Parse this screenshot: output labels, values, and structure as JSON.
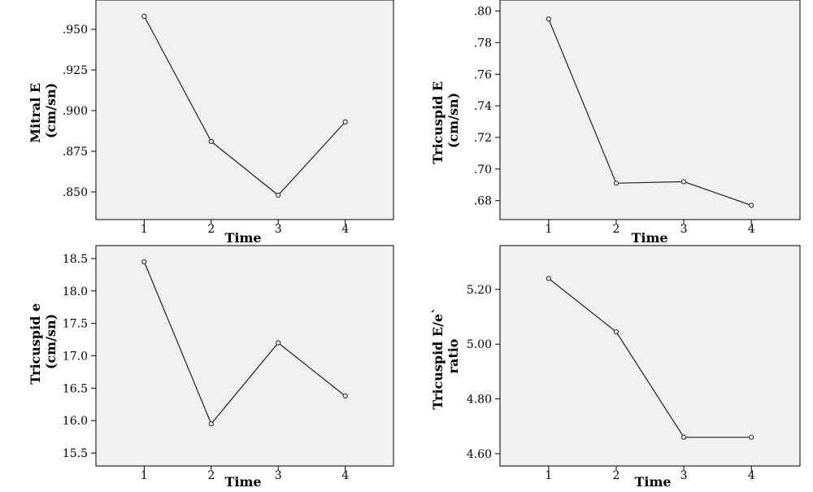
{
  "chart_data": [
    {
      "type": "line",
      "x": [
        1,
        2,
        3,
        4
      ],
      "values": [
        0.958,
        0.881,
        0.848,
        0.893
      ],
      "xlabel": "Time",
      "ylabel_lines": [
        "Mitral E",
        "(cm/sn)"
      ],
      "yticks": [
        0.85,
        0.875,
        0.9,
        0.925,
        0.95
      ],
      "ytick_labels": [
        ".850",
        ".875",
        ".900",
        ".925",
        ".950"
      ],
      "ylim": [
        0.833,
        0.968
      ],
      "xticks": [
        1,
        2,
        3,
        4
      ],
      "xtick_labels": [
        "1",
        "2",
        "3",
        "4"
      ],
      "xlim": [
        0.28,
        4.72
      ],
      "grid": false
    },
    {
      "type": "line",
      "x": [
        1,
        2,
        3,
        4
      ],
      "values": [
        0.795,
        0.691,
        0.692,
        0.677
      ],
      "xlabel": "Time",
      "ylabel_lines": [
        "Tricuspid E",
        "(cm/sn)"
      ],
      "yticks": [
        0.68,
        0.7,
        0.72,
        0.74,
        0.76,
        0.78,
        0.8
      ],
      "ytick_labels": [
        ".68",
        ".70",
        ".72",
        ".74",
        ".76",
        ".78",
        ".80"
      ],
      "ylim": [
        0.668,
        0.807
      ],
      "xticks": [
        1,
        2,
        3,
        4
      ],
      "xtick_labels": [
        "1",
        "2",
        "3",
        "4"
      ],
      "xlim": [
        0.28,
        4.72
      ],
      "grid": false
    },
    {
      "type": "line",
      "x": [
        1,
        2,
        3,
        4
      ],
      "values": [
        18.45,
        15.95,
        17.2,
        16.38
      ],
      "xlabel": "Time",
      "ylabel_lines": [
        "Tricuspid e",
        "(cm/sn)"
      ],
      "yticks": [
        15.5,
        16.0,
        16.5,
        17.0,
        17.5,
        18.0,
        18.5
      ],
      "ytick_labels": [
        "15.5",
        "16.0",
        "16.5",
        "17.0",
        "17.5",
        "18.0",
        "18.5"
      ],
      "ylim": [
        15.3,
        18.7
      ],
      "xticks": [
        1,
        2,
        3,
        4
      ],
      "xtick_labels": [
        "1",
        "2",
        "3",
        "4"
      ],
      "xlim": [
        0.28,
        4.72
      ],
      "grid": false
    },
    {
      "type": "line",
      "x": [
        1,
        2,
        3,
        4
      ],
      "values": [
        5.24,
        5.045,
        4.66,
        4.66
      ],
      "xlabel": "Time",
      "ylabel_lines": [
        "Tricuspid E/e`",
        "ratio"
      ],
      "yticks": [
        4.6,
        4.8,
        5.0,
        5.2
      ],
      "ytick_labels": [
        "4.60",
        "4.80",
        "5.00",
        "5.20"
      ],
      "ylim": [
        4.555,
        5.36
      ],
      "xticks": [
        1,
        2,
        3,
        4
      ],
      "xtick_labels": [
        "1",
        "2",
        "3",
        "4"
      ],
      "xlim": [
        0.28,
        4.72
      ],
      "grid": false
    }
  ]
}
